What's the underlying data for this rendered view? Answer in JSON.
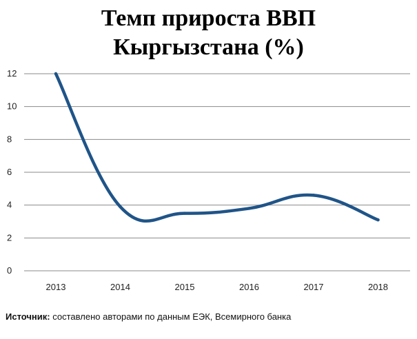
{
  "title_lines": [
    "Темп прироста ВВП",
    "Кыргызстана (%)"
  ],
  "source": {
    "label": "Источник:",
    "text": " составлено авторами по данным ЕЭК, Всемирного банка"
  },
  "colors": {
    "line": "#1f5488",
    "grid": "#8a8a8a",
    "text": "#222222"
  },
  "chart_data": {
    "type": "line",
    "title": "Темп прироста ВВП Кыргызстана (%)",
    "xlabel": "",
    "ylabel": "",
    "categories": [
      "2013",
      "2014",
      "2015",
      "2016",
      "2017",
      "2018"
    ],
    "series": [
      {
        "values": [
          12.0,
          3.9,
          3.5,
          3.8,
          4.6,
          3.1
        ]
      }
    ],
    "ylim": [
      0,
      12
    ],
    "yticks": [
      0,
      2,
      4,
      6,
      8,
      10,
      12
    ],
    "smooth": true,
    "grid": "horizontal",
    "legend": "none"
  }
}
